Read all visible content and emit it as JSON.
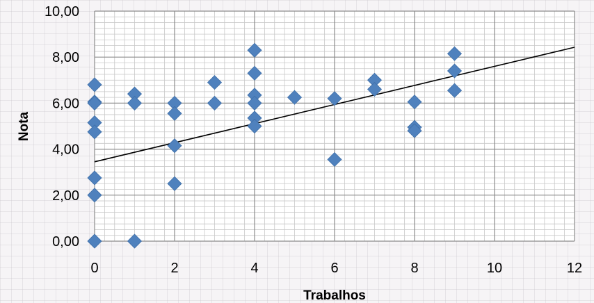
{
  "chart_data": {
    "type": "scatter",
    "xlabel": "Trabalhos",
    "ylabel": "Nota",
    "xlim": [
      0,
      12
    ],
    "ylim": [
      0,
      10
    ],
    "x_ticks": [
      "0",
      "2",
      "4",
      "6",
      "8",
      "10",
      "12"
    ],
    "y_ticks": [
      "0,00",
      "2,00",
      "4,00",
      "6,00",
      "8,00",
      "10,00"
    ],
    "grid": "major and minor",
    "marker": "diamond",
    "marker_color": "#4f81bd",
    "trendline": {
      "type": "linear",
      "intercept": 3.45,
      "slope": 0.415
    },
    "points": [
      {
        "x": 0,
        "y": 6.8
      },
      {
        "x": 0,
        "y": 6.05
      },
      {
        "x": 0,
        "y": 6.0
      },
      {
        "x": 0,
        "y": 5.15
      },
      {
        "x": 0,
        "y": 4.75
      },
      {
        "x": 0,
        "y": 2.75
      },
      {
        "x": 0,
        "y": 2.0
      },
      {
        "x": 0,
        "y": 0.0
      },
      {
        "x": 1,
        "y": 6.4
      },
      {
        "x": 1,
        "y": 6.0
      },
      {
        "x": 1,
        "y": 0.0
      },
      {
        "x": 2,
        "y": 6.0
      },
      {
        "x": 2,
        "y": 5.55
      },
      {
        "x": 2,
        "y": 4.15
      },
      {
        "x": 2,
        "y": 2.5
      },
      {
        "x": 3,
        "y": 6.9
      },
      {
        "x": 3,
        "y": 6.0
      },
      {
        "x": 4,
        "y": 8.3
      },
      {
        "x": 4,
        "y": 7.3
      },
      {
        "x": 4,
        "y": 6.35
      },
      {
        "x": 4,
        "y": 6.0
      },
      {
        "x": 4,
        "y": 5.35
      },
      {
        "x": 4,
        "y": 5.0
      },
      {
        "x": 5,
        "y": 6.25
      },
      {
        "x": 6,
        "y": 6.2
      },
      {
        "x": 6,
        "y": 3.55
      },
      {
        "x": 7,
        "y": 7.0
      },
      {
        "x": 7,
        "y": 6.6
      },
      {
        "x": 8,
        "y": 6.05
      },
      {
        "x": 8,
        "y": 4.95
      },
      {
        "x": 8,
        "y": 4.8
      },
      {
        "x": 9,
        "y": 8.15
      },
      {
        "x": 9,
        "y": 7.4
      },
      {
        "x": 9,
        "y": 6.55
      }
    ]
  }
}
